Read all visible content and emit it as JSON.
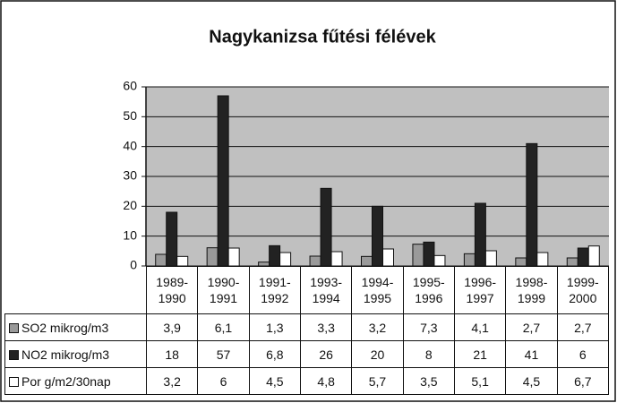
{
  "chart_data": {
    "type": "bar",
    "title": "Nagykanizsa fűtési félévek",
    "categories": [
      "1989-1990",
      "1990-1991",
      "1991-1992",
      "1993-1994",
      "1994-1995",
      "1995-1996",
      "1996-1997",
      "1998-1999",
      "1999-2000"
    ],
    "series": [
      {
        "name": "SO2 mikrog/m3",
        "color": "#9a9a9a",
        "values": [
          3.9,
          6.1,
          1.3,
          3.3,
          3.2,
          7.3,
          4.1,
          2.7,
          2.7
        ],
        "value_labels": [
          "3,9",
          "6,1",
          "1,3",
          "3,3",
          "3,2",
          "7,3",
          "4,1",
          "2,7",
          "2,7"
        ]
      },
      {
        "name": "NO2 mikrog/m3",
        "color": "#222222",
        "values": [
          18,
          57,
          6.8,
          26,
          20,
          8,
          21,
          41,
          6
        ],
        "value_labels": [
          "18",
          "57",
          "6,8",
          "26",
          "20",
          "8",
          "21",
          "41",
          "6"
        ]
      },
      {
        "name": "Por g/m2/30nap",
        "color": "#ffffff",
        "values": [
          3.2,
          6,
          4.5,
          4.8,
          5.7,
          3.5,
          5.1,
          4.5,
          6.7
        ],
        "value_labels": [
          "3,2",
          "6",
          "4,5",
          "4,8",
          "5,7",
          "3,5",
          "5,1",
          "4,5",
          "6,7"
        ]
      }
    ],
    "ylim": [
      0,
      60
    ],
    "yticks": [
      0,
      10,
      20,
      30,
      40,
      50,
      60
    ],
    "grid": true
  }
}
